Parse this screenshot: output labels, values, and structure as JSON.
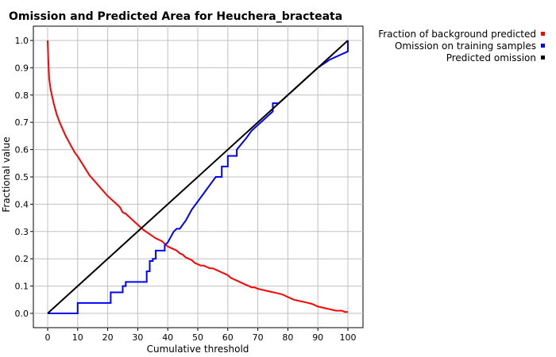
{
  "chart_data": {
    "type": "line",
    "title": "Omission and Predicted Area for Heuchera_bracteata",
    "xlabel": "Cumulative threshold",
    "ylabel": "Fractional value",
    "xlim": [
      0,
      100
    ],
    "ylim": [
      0,
      1.0
    ],
    "x_ticks": [
      0,
      10,
      20,
      30,
      40,
      50,
      60,
      70,
      80,
      90,
      100
    ],
    "y_ticks": [
      0.0,
      0.1,
      0.2,
      0.3,
      0.4,
      0.5,
      0.6,
      0.7,
      0.8,
      0.9,
      1.0
    ],
    "x_tick_labels": [
      "0",
      "10",
      "20",
      "30",
      "40",
      "50",
      "60",
      "70",
      "80",
      "90",
      "100"
    ],
    "y_tick_labels": [
      "0.0",
      "0.1",
      "0.2",
      "0.3",
      "0.4",
      "0.5",
      "0.6",
      "0.7",
      "0.8",
      "0.9",
      "1.0"
    ],
    "grid": true,
    "legend_position": "top-right",
    "series": [
      {
        "name": "Fraction of background predicted",
        "color": "#ff0000",
        "x": [
          0,
          0.2,
          0.5,
          1,
          2,
          3,
          4,
          5,
          6,
          7,
          8,
          9,
          10,
          12,
          14,
          16,
          18,
          20,
          22,
          24,
          25,
          26,
          27,
          28,
          30,
          32,
          34,
          36,
          38,
          39,
          40,
          41,
          42,
          43,
          44,
          45,
          46,
          47,
          48,
          49,
          50,
          51,
          52,
          53,
          54,
          55,
          56,
          57,
          58,
          59,
          60,
          61,
          62,
          63,
          64,
          65,
          66,
          67,
          68,
          69,
          70,
          72,
          74,
          76,
          78,
          80,
          82,
          84,
          86,
          88,
          90,
          92,
          94,
          96,
          98,
          99,
          100
        ],
        "y": [
          1.0,
          0.93,
          0.86,
          0.82,
          0.77,
          0.73,
          0.7,
          0.675,
          0.65,
          0.63,
          0.61,
          0.59,
          0.575,
          0.54,
          0.505,
          0.48,
          0.455,
          0.43,
          0.41,
          0.39,
          0.37,
          0.365,
          0.355,
          0.345,
          0.325,
          0.305,
          0.29,
          0.275,
          0.265,
          0.255,
          0.245,
          0.24,
          0.235,
          0.23,
          0.22,
          0.215,
          0.205,
          0.2,
          0.195,
          0.185,
          0.18,
          0.175,
          0.175,
          0.17,
          0.165,
          0.165,
          0.16,
          0.155,
          0.15,
          0.145,
          0.14,
          0.13,
          0.125,
          0.12,
          0.115,
          0.11,
          0.105,
          0.1,
          0.095,
          0.095,
          0.09,
          0.085,
          0.08,
          0.075,
          0.07,
          0.06,
          0.05,
          0.045,
          0.04,
          0.035,
          0.025,
          0.02,
          0.015,
          0.01,
          0.01,
          0.005,
          0.005
        ]
      },
      {
        "name": "Omission on training samples",
        "color": "#0000ff",
        "x": [
          0,
          10,
          10,
          21,
          21,
          25,
          25,
          26,
          26,
          33,
          33,
          34,
          34,
          35,
          35,
          36,
          36,
          39,
          39,
          40,
          41,
          42,
          43,
          44,
          46,
          48,
          50,
          52,
          54,
          56,
          56,
          58,
          58,
          60,
          60,
          63,
          63,
          66,
          68,
          70,
          72,
          74,
          75,
          75,
          76,
          77,
          77,
          80,
          85,
          90,
          94,
          100,
          100
        ],
        "y": [
          0,
          0,
          0.038,
          0.038,
          0.077,
          0.077,
          0.1,
          0.1,
          0.115,
          0.115,
          0.154,
          0.154,
          0.192,
          0.192,
          0.2,
          0.2,
          0.23,
          0.23,
          0.25,
          0.26,
          0.28,
          0.3,
          0.31,
          0.31,
          0.34,
          0.38,
          0.41,
          0.44,
          0.47,
          0.5,
          0.5,
          0.5,
          0.538,
          0.538,
          0.577,
          0.577,
          0.6,
          0.64,
          0.67,
          0.69,
          0.71,
          0.73,
          0.74,
          0.77,
          0.77,
          0.77,
          0.77,
          0.8,
          0.85,
          0.9,
          0.93,
          0.96,
          1.0
        ]
      },
      {
        "name": "Predicted omission",
        "color": "#000000",
        "x": [
          0,
          100
        ],
        "y": [
          0,
          1.0
        ]
      }
    ]
  }
}
